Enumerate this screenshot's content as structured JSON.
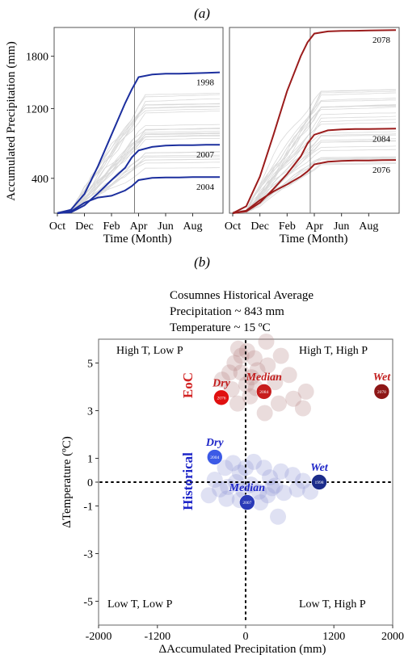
{
  "chart_data": [
    {
      "type": "line",
      "panel_label": "(a)",
      "ylabel": "Accumulated Precipitation (mm)",
      "xlabel": "Time (Month)",
      "yticks": [
        400,
        1200,
        1800
      ],
      "xticks": [
        "Oct",
        "Dec",
        "Feb",
        "Apr",
        "Jun",
        "Aug"
      ],
      "ylim": [
        0,
        2130
      ],
      "subplots": [
        {
          "name": "historical",
          "highlight_color": "#1c2f9e",
          "series": [
            {
              "name": "1998",
              "x": [
                0,
                1,
                2,
                3,
                4,
                5,
                5.5,
                6,
                7,
                8,
                9,
                10,
                11,
                12
              ],
              "values": [
                0,
                40,
                220,
                540,
                900,
                1260,
                1420,
                1560,
                1590,
                1600,
                1600,
                1605,
                1610,
                1615
              ]
            },
            {
              "name": "2007",
              "x": [
                0,
                1,
                2,
                3,
                4,
                5,
                5.5,
                6,
                7,
                8,
                9,
                10,
                11,
                12
              ],
              "values": [
                0,
                10,
                90,
                230,
                380,
                520,
                640,
                720,
                760,
                775,
                780,
                780,
                785,
                785
              ]
            },
            {
              "name": "2004",
              "x": [
                0,
                1,
                2,
                3,
                4,
                5,
                5.5,
                6,
                7,
                8,
                9,
                10,
                11,
                12
              ],
              "values": [
                0,
                20,
                120,
                180,
                200,
                260,
                310,
                380,
                405,
                410,
                410,
                415,
                415,
                415
              ]
            }
          ]
        },
        {
          "name": "end-of-century",
          "highlight_color": "#9b1c1c",
          "series": [
            {
              "name": "2078",
              "x": [
                0,
                1,
                2,
                3,
                4,
                5,
                5.5,
                6,
                7,
                8,
                9,
                10,
                11,
                12
              ],
              "values": [
                0,
                80,
                420,
                900,
                1400,
                1800,
                1960,
                2060,
                2085,
                2090,
                2092,
                2095,
                2098,
                2100
              ]
            },
            {
              "name": "2084",
              "x": [
                0,
                1,
                2,
                3,
                4,
                5,
                5.5,
                6,
                7,
                8,
                9,
                10,
                11,
                12
              ],
              "values": [
                0,
                20,
                120,
                280,
                450,
                650,
                800,
                900,
                950,
                960,
                965,
                965,
                968,
                970
              ]
            },
            {
              "name": "2076",
              "x": [
                0,
                1,
                2,
                3,
                4,
                5,
                5.5,
                6,
                7,
                8,
                9,
                10,
                11,
                12
              ],
              "values": [
                0,
                30,
                150,
                250,
                330,
                420,
                480,
                560,
                590,
                600,
                605,
                605,
                608,
                610
              ]
            }
          ]
        }
      ],
      "background_line_color": "#d9d9d9",
      "vertical_marker_x": 5.7
    },
    {
      "type": "scatter",
      "panel_label": "(b)",
      "subtitle_lines": [
        "Cosumnes Historical Average",
        "Precipitation ~ 843 mm",
        "Temperature ~ 15 ºC"
      ],
      "xlabel": "ΔAccumulated Precipitation (mm)",
      "ylabel": "ΔTemperature (ºC)",
      "xlim": [
        -2000,
        2000
      ],
      "ylim": [
        -6,
        6
      ],
      "xticks": [
        -2000,
        -1200,
        0,
        1200,
        2000
      ],
      "yticks": [
        -5,
        -3,
        -1,
        0,
        1,
        3,
        5
      ],
      "quadrant_labels": {
        "top_left": "High T, Low P",
        "top_right": "High T, High P",
        "bottom_left": "Low T, Low P",
        "bottom_right": "Low T, High P"
      },
      "group_labels": {
        "eoc": "EoC",
        "historical": "Historical"
      },
      "colors": {
        "eoc": "#c21e1e",
        "historical": "#1e26c8",
        "eoc_faint": "#b58080",
        "historical_faint": "#8d93d4"
      },
      "highlighted_points": [
        {
          "label": "Dry",
          "year": "2076",
          "x": -330,
          "y": 3.55,
          "group": "eoc",
          "color": "#e01010"
        },
        {
          "label": "Median",
          "year": "2084",
          "x": 250,
          "y": 3.8,
          "group": "eoc",
          "color": "#c71d1d"
        },
        {
          "label": "Wet",
          "year": "2078",
          "x": 1850,
          "y": 3.8,
          "group": "eoc",
          "color": "#8e1717"
        },
        {
          "label": "Dry",
          "year": "2004",
          "x": -420,
          "y": 1.05,
          "group": "historical",
          "color": "#3c5ae6"
        },
        {
          "label": "Median",
          "year": "2007",
          "x": 20,
          "y": -0.85,
          "group": "historical",
          "color": "#2a3ab8"
        },
        {
          "label": "Wet",
          "year": "1998",
          "x": 1000,
          "y": 0.0,
          "group": "historical",
          "color": "#1b2c8a"
        }
      ],
      "background_points": {
        "eoc": [
          [
            -100,
            5.6
          ],
          [
            -60,
            5.3
          ],
          [
            20,
            5.5
          ],
          [
            120,
            5.2
          ],
          [
            280,
            5.9
          ],
          [
            -150,
            5.0
          ],
          [
            -60,
            4.6
          ],
          [
            80,
            4.4
          ],
          [
            160,
            4.7
          ],
          [
            300,
            4.9
          ],
          [
            480,
            5.3
          ],
          [
            590,
            4.5
          ],
          [
            -320,
            4.3
          ],
          [
            -220,
            4.6
          ],
          [
            10,
            4.1
          ],
          [
            140,
            3.95
          ],
          [
            400,
            4.2
          ],
          [
            650,
            3.5
          ],
          [
            820,
            3.8
          ],
          [
            450,
            3.3
          ],
          [
            260,
            2.9
          ],
          [
            -190,
            3.9
          ],
          [
            -110,
            3.3
          ],
          [
            60,
            3.6
          ],
          [
            780,
            3.1
          ]
        ],
        "historical": [
          [
            -280,
            0.6
          ],
          [
            -170,
            0.8
          ],
          [
            -80,
            0.4
          ],
          [
            0,
            0.6
          ],
          [
            110,
            0.85
          ],
          [
            250,
            0.6
          ],
          [
            330,
            0.2
          ],
          [
            480,
            0.45
          ],
          [
            640,
            0.3
          ],
          [
            780,
            0.05
          ],
          [
            -420,
            0.1
          ],
          [
            -350,
            -0.3
          ],
          [
            -240,
            -0.2
          ],
          [
            -130,
            0.0
          ],
          [
            -30,
            -0.35
          ],
          [
            70,
            -0.1
          ],
          [
            180,
            -0.4
          ],
          [
            300,
            -0.55
          ],
          [
            400,
            -0.15
          ],
          [
            520,
            -0.45
          ],
          [
            700,
            -0.3
          ],
          [
            -260,
            -0.7
          ],
          [
            -80,
            -0.75
          ],
          [
            200,
            -0.85
          ],
          [
            360,
            -0.25
          ],
          [
            440,
            -1.45
          ],
          [
            -500,
            -0.55
          ],
          [
            880,
            -0.4
          ]
        ]
      }
    }
  ]
}
